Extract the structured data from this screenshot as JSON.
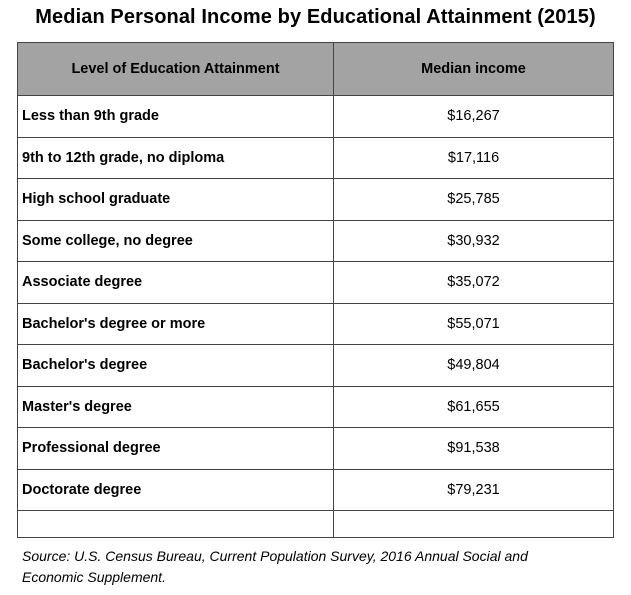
{
  "title": "Median Personal Income by Educational Attainment (2015)",
  "table": {
    "headers": [
      "Level of Education Attainment",
      "Median income"
    ],
    "rows": [
      {
        "level": "Less than 9th grade",
        "income": "$16,267"
      },
      {
        "level": "9th to 12th grade, no diploma",
        "income": "$17,116"
      },
      {
        "level": "High school graduate",
        "income": "$25,785"
      },
      {
        "level": "Some college, no degree",
        "income": "$30,932"
      },
      {
        "level": "Associate degree",
        "income": "$35,072"
      },
      {
        "level": "Bachelor's degree or more",
        "income": "$55,071"
      },
      {
        "level": "Bachelor's degree",
        "income": "$49,804"
      },
      {
        "level": "Master's degree",
        "income": "$61,655"
      },
      {
        "level": "Professional degree",
        "income": "$91,538"
      },
      {
        "level": "Doctorate degree",
        "income": "$79,231"
      }
    ]
  },
  "source": {
    "line1": "Source: U.S. Census Bureau, Current Population Survey, 2016 Annual Social and",
    "line2": "Economic Supplement."
  },
  "colors": {
    "header_background": "#a3a3a3",
    "border": "#444444"
  }
}
